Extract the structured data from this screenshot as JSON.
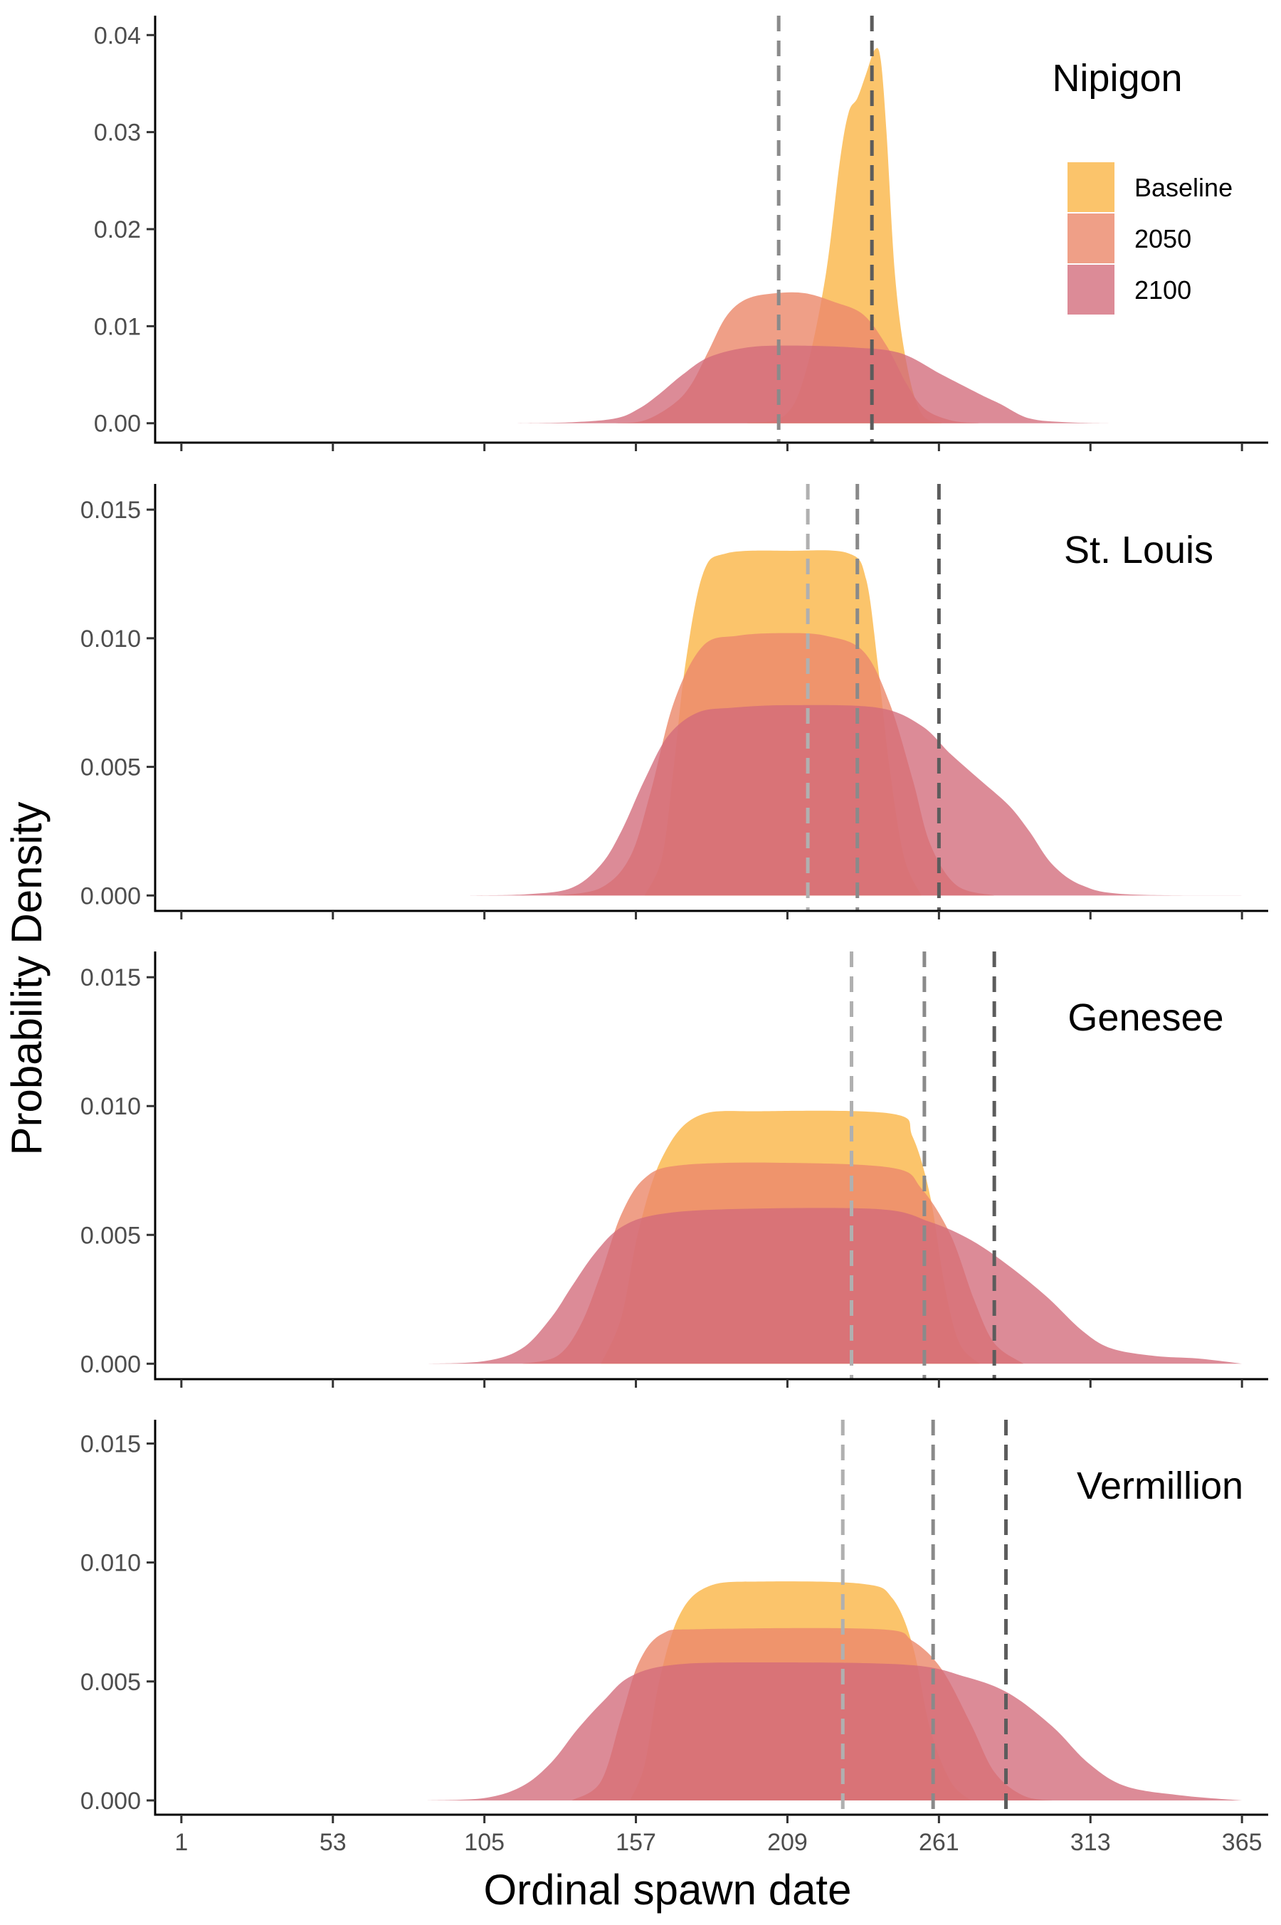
{
  "chart_data": {
    "type": "area",
    "xlabel": "Ordinal spawn date",
    "ylabel": "Probability Density",
    "x_ticks": [
      1,
      53,
      105,
      157,
      209,
      261,
      313,
      365
    ],
    "xlim": [
      -8,
      374
    ],
    "legend": {
      "placement": "top-right, first panel",
      "entries": [
        {
          "name": "Baseline",
          "color": "#fbbc56"
        },
        {
          "name": "2050",
          "color": "#ec8a6c"
        },
        {
          "name": "2100",
          "color": "#d26a7a"
        }
      ]
    },
    "panels": [
      {
        "title": "Nipigon",
        "ylim": [
          -0.002,
          0.042
        ],
        "y_ticks": [
          0.0,
          0.01,
          0.02,
          0.03,
          0.04
        ],
        "y_tick_labels": [
          "0.00",
          "0.01",
          "0.02",
          "0.03",
          "0.04"
        ],
        "vlines": [
          {
            "x": 206,
            "shade": "#8a8a8a"
          },
          {
            "x": 238,
            "shade": "#5c5c5c"
          }
        ],
        "series": [
          {
            "name": "2100",
            "points": [
              [
                115,
                0
              ],
              [
                135,
                0.0001
              ],
              [
                150,
                0.0005
              ],
              [
                158,
                0.0015
              ],
              [
                165,
                0.003
              ],
              [
                173,
                0.005
              ],
              [
                182,
                0.0068
              ],
              [
                195,
                0.0078
              ],
              [
                210,
                0.008
              ],
              [
                232,
                0.0078
              ],
              [
                248,
                0.0072
              ],
              [
                262,
                0.005
              ],
              [
                275,
                0.003
              ],
              [
                282,
                0.002
              ],
              [
                292,
                0.0005
              ],
              [
                305,
                0.0001
              ],
              [
                320,
                0
              ]
            ]
          },
          {
            "name": "2050",
            "points": [
              [
                150,
                0
              ],
              [
                160,
                0.0003
              ],
              [
                170,
                0.002
              ],
              [
                176,
                0.004
              ],
              [
                182,
                0.0075
              ],
              [
                188,
                0.011
              ],
              [
                195,
                0.0128
              ],
              [
                205,
                0.0134
              ],
              [
                215,
                0.0134
              ],
              [
                225,
                0.0125
              ],
              [
                235,
                0.0112
              ],
              [
                243,
                0.008
              ],
              [
                250,
                0.004
              ],
              [
                256,
                0.0015
              ],
              [
                265,
                0.0003
              ],
              [
                275,
                0
              ]
            ]
          },
          {
            "name": "Baseline",
            "points": [
              [
                195,
                0
              ],
              [
                208,
                0.0008
              ],
              [
                215,
                0.005
              ],
              [
                222,
                0.015
              ],
              [
                227,
                0.027
              ],
              [
                230,
                0.032
              ],
              [
                233,
                0.0335
              ],
              [
                236,
                0.036
              ],
              [
                239,
                0.0385
              ],
              [
                241,
                0.0375
              ],
              [
                243,
                0.03
              ],
              [
                246,
                0.015
              ],
              [
                250,
                0.006
              ],
              [
                255,
                0.001
              ],
              [
                262,
                0
              ]
            ]
          }
        ]
      },
      {
        "title": "St. Louis",
        "ylim": [
          -0.0006,
          0.016
        ],
        "y_ticks": [
          0.0,
          0.005,
          0.01,
          0.015
        ],
        "y_tick_labels": [
          "0.000",
          "0.005",
          "0.010",
          "0.015"
        ],
        "vlines": [
          {
            "x": 216,
            "shade": "#b0b0b0"
          },
          {
            "x": 233,
            "shade": "#8a8a8a"
          },
          {
            "x": 261,
            "shade": "#5c5c5c"
          }
        ],
        "series": [
          {
            "name": "2100",
            "points": [
              [
                100,
                0
              ],
              [
                120,
                5e-05
              ],
              [
                135,
                0.0003
              ],
              [
                145,
                0.0012
              ],
              [
                152,
                0.0025
              ],
              [
                160,
                0.0045
              ],
              [
                168,
                0.0062
              ],
              [
                178,
                0.0071
              ],
              [
                190,
                0.0073
              ],
              [
                210,
                0.0074
              ],
              [
                240,
                0.0073
              ],
              [
                255,
                0.0066
              ],
              [
                265,
                0.0055
              ],
              [
                275,
                0.0045
              ],
              [
                285,
                0.0035
              ],
              [
                292,
                0.0025
              ],
              [
                300,
                0.0012
              ],
              [
                310,
                0.0004
              ],
              [
                325,
                5e-05
              ],
              [
                365,
                0
              ]
            ]
          },
          {
            "name": "2050",
            "points": [
              [
                130,
                0
              ],
              [
                145,
                0.0003
              ],
              [
                155,
                0.0015
              ],
              [
                162,
                0.004
              ],
              [
                170,
                0.0075
              ],
              [
                180,
                0.0097
              ],
              [
                192,
                0.0101
              ],
              [
                208,
                0.0102
              ],
              [
                222,
                0.0101
              ],
              [
                235,
                0.0095
              ],
              [
                244,
                0.0075
              ],
              [
                252,
                0.0045
              ],
              [
                258,
                0.002
              ],
              [
                267,
                0.0004
              ],
              [
                280,
                0
              ]
            ]
          },
          {
            "name": "Baseline",
            "points": [
              [
                160,
                0
              ],
              [
                166,
                0.0015
              ],
              [
                170,
                0.005
              ],
              [
                174,
                0.009
              ],
              [
                180,
                0.0125
              ],
              [
                188,
                0.0133
              ],
              [
                210,
                0.0134
              ],
              [
                230,
                0.0133
              ],
              [
                236,
                0.0123
              ],
              [
                240,
                0.009
              ],
              [
                244,
                0.005
              ],
              [
                249,
                0.0015
              ],
              [
                255,
                0
              ]
            ]
          }
        ]
      },
      {
        "title": "Genesee",
        "ylim": [
          -0.0006,
          0.016
        ],
        "y_ticks": [
          0.0,
          0.005,
          0.01,
          0.015
        ],
        "y_tick_labels": [
          "0.000",
          "0.005",
          "0.010",
          "0.015"
        ],
        "vlines": [
          {
            "x": 231,
            "shade": "#b0b0b0"
          },
          {
            "x": 256,
            "shade": "#8a8a8a"
          },
          {
            "x": 280,
            "shade": "#5c5c5c"
          }
        ],
        "series": [
          {
            "name": "2100",
            "points": [
              [
                85,
                0
              ],
              [
                105,
                0.0001
              ],
              [
                118,
                0.0006
              ],
              [
                128,
                0.0018
              ],
              [
                135,
                0.003
              ],
              [
                143,
                0.0043
              ],
              [
                152,
                0.0053
              ],
              [
                165,
                0.0058
              ],
              [
                190,
                0.006
              ],
              [
                240,
                0.006
              ],
              [
                258,
                0.0055
              ],
              [
                272,
                0.0048
              ],
              [
                285,
                0.0038
              ],
              [
                298,
                0.0026
              ],
              [
                310,
                0.0013
              ],
              [
                320,
                0.0006
              ],
              [
                335,
                0.0003
              ],
              [
                350,
                0.0002
              ],
              [
                365,
                0
              ]
            ]
          },
          {
            "name": "2050",
            "points": [
              [
                118,
                0
              ],
              [
                130,
                0.0003
              ],
              [
                138,
                0.0015
              ],
              [
                145,
                0.0035
              ],
              [
                152,
                0.0058
              ],
              [
                160,
                0.0072
              ],
              [
                172,
                0.0077
              ],
              [
                205,
                0.0078
              ],
              [
                245,
                0.0076
              ],
              [
                255,
                0.0068
              ],
              [
                265,
                0.005
              ],
              [
                273,
                0.0025
              ],
              [
                280,
                0.0008
              ],
              [
                290,
                0
              ]
            ]
          },
          {
            "name": "Baseline",
            "points": [
              [
                145,
                0
              ],
              [
                152,
                0.0018
              ],
              [
                158,
                0.0052
              ],
              [
                166,
                0.008
              ],
              [
                178,
                0.0096
              ],
              [
                200,
                0.0098
              ],
              [
                245,
                0.0097
              ],
              [
                252,
                0.0088
              ],
              [
                258,
                0.0065
              ],
              [
                263,
                0.003
              ],
              [
                268,
                0.0008
              ],
              [
                275,
                0
              ]
            ]
          }
        ]
      },
      {
        "title": "Vermillion",
        "ylim": [
          -0.0006,
          0.016
        ],
        "y_ticks": [
          0.0,
          0.005,
          0.01,
          0.015
        ],
        "y_tick_labels": [
          "0.000",
          "0.005",
          "0.010",
          "0.015"
        ],
        "vlines": [
          {
            "x": 228,
            "shade": "#b0b0b0"
          },
          {
            "x": 259,
            "shade": "#8a8a8a"
          },
          {
            "x": 284,
            "shade": "#5c5c5c"
          }
        ],
        "series": [
          {
            "name": "2100",
            "points": [
              [
                85,
                0
              ],
              [
                105,
                0.0001
              ],
              [
                118,
                0.0006
              ],
              [
                128,
                0.0016
              ],
              [
                137,
                0.003
              ],
              [
                146,
                0.0042
              ],
              [
                155,
                0.0052
              ],
              [
                170,
                0.0057
              ],
              [
                200,
                0.0058
              ],
              [
                250,
                0.0057
              ],
              [
                270,
                0.0052
              ],
              [
                285,
                0.0045
              ],
              [
                300,
                0.0031
              ],
              [
                312,
                0.0016
              ],
              [
                325,
                0.0006
              ],
              [
                345,
                0.0002
              ],
              [
                365,
                0
              ]
            ]
          },
          {
            "name": "2050",
            "points": [
              [
                135,
                0
              ],
              [
                145,
                0.0008
              ],
              [
                152,
                0.0035
              ],
              [
                158,
                0.0058
              ],
              [
                166,
                0.007
              ],
              [
                180,
                0.0072
              ],
              [
                240,
                0.0072
              ],
              [
                252,
                0.0067
              ],
              [
                262,
                0.0055
              ],
              [
                272,
                0.0032
              ],
              [
                280,
                0.0012
              ],
              [
                290,
                0.0002
              ],
              [
                300,
                0
              ]
            ]
          },
          {
            "name": "Baseline",
            "points": [
              [
                155,
                0
              ],
              [
                160,
                0.0015
              ],
              [
                165,
                0.005
              ],
              [
                172,
                0.0078
              ],
              [
                182,
                0.009
              ],
              [
                200,
                0.0092
              ],
              [
                235,
                0.0091
              ],
              [
                245,
                0.0085
              ],
              [
                252,
                0.0065
              ],
              [
                258,
                0.003
              ],
              [
                265,
                0.0008
              ],
              [
                272,
                0
              ]
            ]
          }
        ]
      }
    ]
  }
}
